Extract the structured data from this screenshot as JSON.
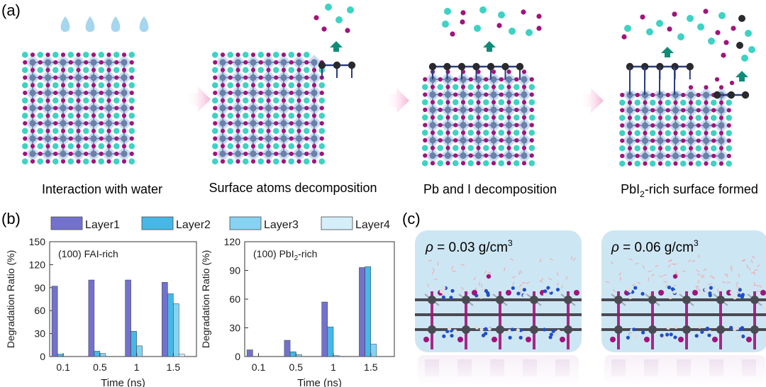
{
  "panel_labels": {
    "a": "(a)",
    "b": "(b)",
    "c": "(c)"
  },
  "panel_a": {
    "captions": [
      {
        "main": "Interaction with water"
      },
      {
        "main": "Surface atoms decomposition"
      },
      {
        "main": "Pb and I decomposition"
      },
      {
        "pre": "PbI",
        "sub": "2",
        "post": "-rich surface formed"
      }
    ]
  },
  "colors": {
    "layer1": "#7272cc",
    "layer2": "#46b8e6",
    "layer3": "#86d2f2",
    "layer4": "#d4eefa",
    "cation": "#3ed2c4",
    "iodide": "#a0147c",
    "lead": "#4a4a52",
    "octahedron": "#b8cfee",
    "arrow": "#0f8c78",
    "water": "#a6d6ee",
    "md_bg": "#cde6f3"
  },
  "chart_data": [
    {
      "type": "bar",
      "title": "(100) FAI-rich",
      "xlabel": "Time (ns)",
      "ylabel": "Degradation Ratio (%)",
      "categories": [
        "0.1",
        "0.5",
        "1",
        "1.5"
      ],
      "yticks": [
        "0",
        "30",
        "60",
        "90",
        "120",
        "150"
      ],
      "ylim": [
        0,
        150
      ],
      "series": [
        {
          "name": "Layer1",
          "values": [
            92,
            100,
            100,
            97
          ]
        },
        {
          "name": "Layer2",
          "values": [
            3,
            7,
            33,
            82
          ]
        },
        {
          "name": "Layer3",
          "values": [
            0,
            4,
            14,
            69
          ]
        },
        {
          "name": "Layer4",
          "values": [
            0,
            0,
            0,
            3
          ]
        }
      ]
    },
    {
      "type": "bar",
      "title_pre": "(100) PbI",
      "title_sub": "2",
      "title_post": "-rich",
      "xlabel": "Time (ns)",
      "ylabel": "Degradation Ratio (%)",
      "categories": [
        "0.1",
        "0.5",
        "1",
        "1.5"
      ],
      "yticks": [
        "0",
        "30",
        "60",
        "90",
        "120"
      ],
      "ylim": [
        0,
        120
      ],
      "series": [
        {
          "name": "Layer1",
          "values": [
            7,
            17,
            57,
            93
          ]
        },
        {
          "name": "Layer2",
          "values": [
            0,
            5,
            31,
            94
          ]
        },
        {
          "name": "Layer3",
          "values": [
            0,
            2,
            1,
            13
          ]
        },
        {
          "name": "Layer4",
          "values": [
            0,
            0,
            0,
            0
          ]
        }
      ]
    }
  ],
  "panel_c": {
    "snapshots": [
      {
        "rho_symbol": "ρ",
        "text": " = 0.03 g/cm",
        "sup": "3"
      },
      {
        "rho_symbol": "ρ",
        "text": " = 0.06 g/cm",
        "sup": "3"
      }
    ]
  }
}
